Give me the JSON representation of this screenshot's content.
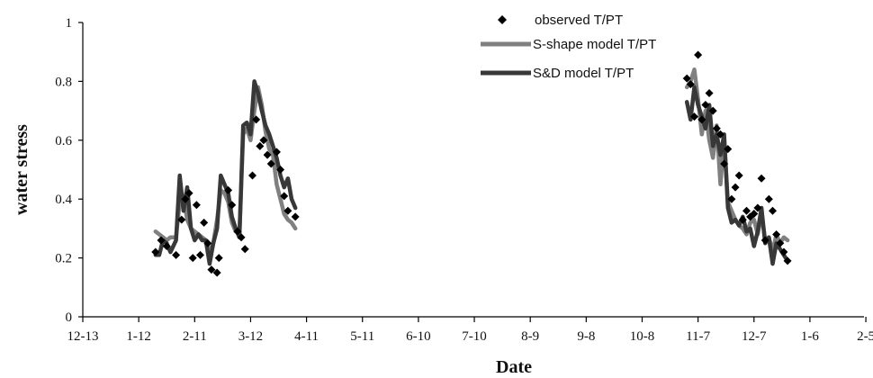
{
  "chart_data": {
    "type": "line",
    "title": "",
    "xlabel": "Date",
    "ylabel": "water  stress",
    "ylim": [
      0,
      1
    ],
    "yticks": [
      "0",
      "0.2",
      "0.4",
      "0.6",
      "0.8",
      "1"
    ],
    "yticks_values": [
      0,
      0.2,
      0.4,
      0.6,
      0.8,
      1
    ],
    "xlim": [
      "2008-12-13",
      "2010-02-05"
    ],
    "xticks": [
      "12-13",
      "1-12",
      "2-11",
      "3-12",
      "4-11",
      "5-11",
      "6-10",
      "7-10",
      "8-9",
      "9-8",
      "10-8",
      "11-7",
      "12-7",
      "1-6",
      "2-5"
    ],
    "xticks_dates": [
      "2008-12-13",
      "2009-01-12",
      "2009-02-11",
      "2009-03-13",
      "2009-04-12",
      "2009-05-12",
      "2009-06-11",
      "2009-07-11",
      "2009-08-10",
      "2009-09-09",
      "2009-10-09",
      "2009-11-08",
      "2009-12-08",
      "2010-01-07",
      "2010-02-06"
    ],
    "grid": false,
    "legend_position": "top-right",
    "series": [
      {
        "name": "observed T/PT",
        "marker": "diamond",
        "color": "#000000",
        "x": [
          "2009-01-21",
          "2009-01-24",
          "2009-01-27",
          "2009-02-01",
          "2009-02-04",
          "2009-02-06",
          "2009-02-08",
          "2009-02-10",
          "2009-02-12",
          "2009-02-14",
          "2009-02-16",
          "2009-02-18",
          "2009-02-20",
          "2009-02-23",
          "2009-02-24",
          "2009-03-01",
          "2009-03-03",
          "2009-03-06",
          "2009-03-08",
          "2009-03-10",
          "2009-03-14",
          "2009-03-16",
          "2009-03-18",
          "2009-03-20",
          "2009-03-22",
          "2009-03-24",
          "2009-03-27",
          "2009-03-29",
          "2009-03-31",
          "2009-04-02",
          "2009-04-06",
          "2009-11-02",
          "2009-11-04",
          "2009-11-06",
          "2009-11-08",
          "2009-11-10",
          "2009-11-12",
          "2009-11-14",
          "2009-11-16",
          "2009-11-18",
          "2009-11-20",
          "2009-11-22",
          "2009-11-24",
          "2009-11-26",
          "2009-11-28",
          "2009-11-30",
          "2009-12-02",
          "2009-12-04",
          "2009-12-06",
          "2009-12-08",
          "2009-12-10",
          "2009-12-12",
          "2009-12-14",
          "2009-12-16",
          "2009-12-18",
          "2009-12-20",
          "2009-12-22",
          "2009-12-24",
          "2009-12-26"
        ],
        "y": [
          0.22,
          0.26,
          0.24,
          0.21,
          0.33,
          0.4,
          0.42,
          0.2,
          0.38,
          0.21,
          0.32,
          0.25,
          0.16,
          0.15,
          0.2,
          0.43,
          0.38,
          0.29,
          0.27,
          0.23,
          0.48,
          0.67,
          0.58,
          0.6,
          0.55,
          0.52,
          0.56,
          0.5,
          0.41,
          0.36,
          0.34,
          0.81,
          0.79,
          0.68,
          0.89,
          0.67,
          0.72,
          0.76,
          0.7,
          0.64,
          0.62,
          0.52,
          0.57,
          0.4,
          0.44,
          0.48,
          0.33,
          0.36,
          0.34,
          0.35,
          0.37,
          0.47,
          0.26,
          0.4,
          0.36,
          0.28,
          0.25,
          0.22,
          0.19
        ]
      },
      {
        "name": "S-shape model T/PT",
        "color": "#808080",
        "segments": [
          {
            "x": [
              "2009-01-21",
              "2009-01-23",
              "2009-01-25",
              "2009-01-27",
              "2009-01-29",
              "2009-02-01",
              "2009-02-03",
              "2009-02-05",
              "2009-02-07",
              "2009-02-09",
              "2009-02-11",
              "2009-02-13",
              "2009-02-15",
              "2009-02-17",
              "2009-02-19",
              "2009-02-21",
              "2009-02-23",
              "2009-02-25",
              "2009-02-27",
              "2009-03-01",
              "2009-03-03",
              "2009-03-05",
              "2009-03-07",
              "2009-03-09",
              "2009-03-11",
              "2009-03-13",
              "2009-03-15",
              "2009-03-17",
              "2009-03-19",
              "2009-03-21",
              "2009-03-23",
              "2009-03-25",
              "2009-03-27",
              "2009-03-29",
              "2009-03-31",
              "2009-04-02",
              "2009-04-04",
              "2009-04-06"
            ],
            "y": [
              0.29,
              0.28,
              0.27,
              0.26,
              0.27,
              0.27,
              0.39,
              0.41,
              0.33,
              0.3,
              0.29,
              0.28,
              0.27,
              0.26,
              0.22,
              0.25,
              0.33,
              0.43,
              0.42,
              0.39,
              0.32,
              0.29,
              0.28,
              0.62,
              0.64,
              0.6,
              0.7,
              0.78,
              0.72,
              0.63,
              0.57,
              0.55,
              0.45,
              0.4,
              0.35,
              0.33,
              0.32,
              0.3
            ]
          },
          {
            "x": [
              "2009-11-02",
              "2009-11-04",
              "2009-11-06",
              "2009-11-08",
              "2009-11-10",
              "2009-11-12",
              "2009-11-14",
              "2009-11-16",
              "2009-11-18",
              "2009-11-20",
              "2009-11-22",
              "2009-11-24",
              "2009-11-26",
              "2009-11-28",
              "2009-11-30",
              "2009-12-02",
              "2009-12-04",
              "2009-12-06",
              "2009-12-08",
              "2009-12-10",
              "2009-12-12",
              "2009-12-14",
              "2009-12-16",
              "2009-12-18",
              "2009-12-20",
              "2009-12-22",
              "2009-12-24",
              "2009-12-26"
            ],
            "y": [
              0.78,
              0.8,
              0.84,
              0.74,
              0.62,
              0.7,
              0.6,
              0.54,
              0.65,
              0.45,
              0.6,
              0.39,
              0.36,
              0.33,
              0.31,
              0.3,
              0.28,
              0.32,
              0.33,
              0.28,
              0.35,
              0.26,
              0.27,
              0.22,
              0.28,
              0.25,
              0.27,
              0.26
            ]
          }
        ]
      },
      {
        "name": "S&D model T/PT",
        "color": "#383838",
        "segments": [
          {
            "x": [
              "2009-01-21",
              "2009-01-23",
              "2009-01-25",
              "2009-01-27",
              "2009-01-29",
              "2009-02-01",
              "2009-02-03",
              "2009-02-05",
              "2009-02-07",
              "2009-02-09",
              "2009-02-11",
              "2009-02-13",
              "2009-02-15",
              "2009-02-17",
              "2009-02-19",
              "2009-02-21",
              "2009-02-23",
              "2009-02-25",
              "2009-02-27",
              "2009-03-01",
              "2009-03-03",
              "2009-03-05",
              "2009-03-07",
              "2009-03-09",
              "2009-03-11",
              "2009-03-13",
              "2009-03-15",
              "2009-03-17",
              "2009-03-19",
              "2009-03-21",
              "2009-03-23",
              "2009-03-25",
              "2009-03-27",
              "2009-03-29",
              "2009-03-31",
              "2009-04-02",
              "2009-04-04",
              "2009-04-06"
            ],
            "y": [
              0.21,
              0.21,
              0.26,
              0.25,
              0.22,
              0.26,
              0.48,
              0.36,
              0.44,
              0.3,
              0.26,
              0.28,
              0.26,
              0.26,
              0.18,
              0.25,
              0.3,
              0.48,
              0.45,
              0.42,
              0.34,
              0.3,
              0.27,
              0.65,
              0.66,
              0.62,
              0.8,
              0.76,
              0.7,
              0.65,
              0.62,
              0.58,
              0.54,
              0.48,
              0.44,
              0.47,
              0.4,
              0.37
            ]
          },
          {
            "x": [
              "2009-11-02",
              "2009-11-04",
              "2009-11-06",
              "2009-11-08",
              "2009-11-10",
              "2009-11-12",
              "2009-11-14",
              "2009-11-16",
              "2009-11-18",
              "2009-11-20",
              "2009-11-22",
              "2009-11-24",
              "2009-11-26",
              "2009-11-28",
              "2009-11-30",
              "2009-12-02",
              "2009-12-04",
              "2009-12-06",
              "2009-12-08",
              "2009-12-10",
              "2009-12-12",
              "2009-12-14",
              "2009-12-16",
              "2009-12-18",
              "2009-12-20",
              "2009-12-22",
              "2009-12-24",
              "2009-12-26"
            ],
            "y": [
              0.73,
              0.67,
              0.78,
              0.72,
              0.68,
              0.64,
              0.72,
              0.58,
              0.62,
              0.55,
              0.62,
              0.37,
              0.32,
              0.33,
              0.31,
              0.34,
              0.29,
              0.3,
              0.24,
              0.29,
              0.37,
              0.25,
              0.27,
              0.18,
              0.25,
              0.23,
              0.21,
              0.19
            ]
          }
        ]
      }
    ]
  }
}
